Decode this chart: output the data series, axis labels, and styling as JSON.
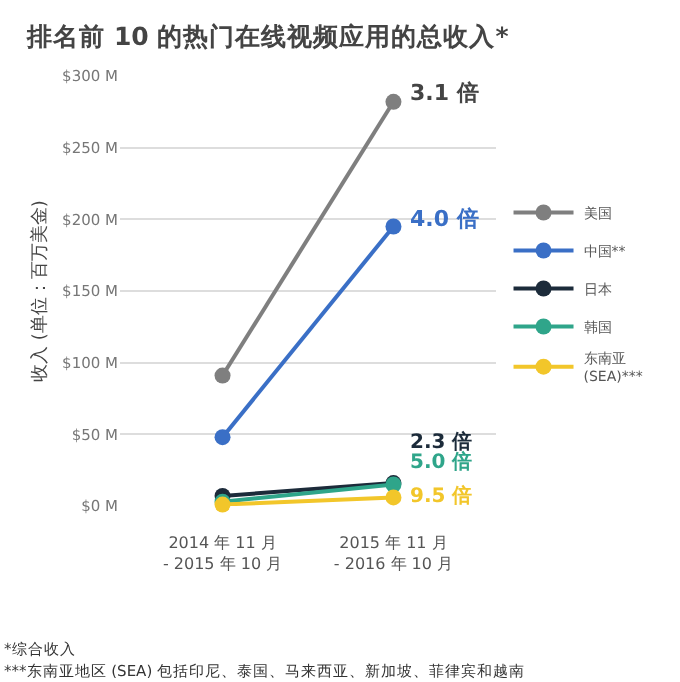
{
  "chart_data": {
    "type": "line",
    "title": "排名前 10 的热门在线视频应用的总收入*",
    "ylabel": "收入 (单位：百万美金)",
    "categories": [
      "2014 年 11 月 - 2015 年 10 月",
      "2015 年 11 月 - 2016 年 10 月"
    ],
    "series": [
      {
        "name": "美国",
        "color": "#7f7f7f",
        "values": [
          91,
          282
        ]
      },
      {
        "name": "中国**",
        "color": "#3a6fc6",
        "values": [
          48,
          195
        ]
      },
      {
        "name": "日本",
        "color": "#1c2b3a",
        "values": [
          7,
          16
        ]
      },
      {
        "name": "韩国",
        "color": "#2fa58a",
        "values": [
          3,
          15
        ]
      },
      {
        "name": "东南亚 (SEA)***",
        "color": "#f2c62a",
        "values": [
          1,
          6
        ]
      }
    ],
    "ylim": [
      0,
      300
    ],
    "yticks": [
      {
        "value": 0,
        "label": "$0 M"
      },
      {
        "value": 50,
        "label": "$50 M"
      },
      {
        "value": 100,
        "label": "$100 M"
      },
      {
        "value": 150,
        "label": "$150 M"
      },
      {
        "value": 200,
        "label": "$200 M"
      },
      {
        "value": 250,
        "label": "$250 M"
      },
      {
        "value": 300,
        "label": "$300 M"
      }
    ],
    "grid": "y",
    "legend": "right",
    "marker": "circle",
    "line_style": "solid",
    "annotations": [
      {
        "text": "3.1 倍",
        "x": "2015 年 11 月 - 2016 年 10 月",
        "y": 282
      },
      {
        "text": "4.0 倍",
        "x": "2015 年 11 月 - 2016 年 10 月",
        "y": 195
      },
      {
        "text": "2.3 倍",
        "x": "2015 年 11 月 - 2016 年 10 月",
        "y": 16
      },
      {
        "text": "5.0 倍",
        "x": "2015 年 11 月 - 2016 年 10 月",
        "y": 15
      },
      {
        "text": "9.5 倍",
        "x": "2015 年 11 月 - 2016 年 10 月",
        "y": 6
      },
      "*综合收入",
      "***东南亚地区 (SEA) 包括印尼、泰国、马来西亚、新加坡、菲律宾和越南"
    ]
  }
}
